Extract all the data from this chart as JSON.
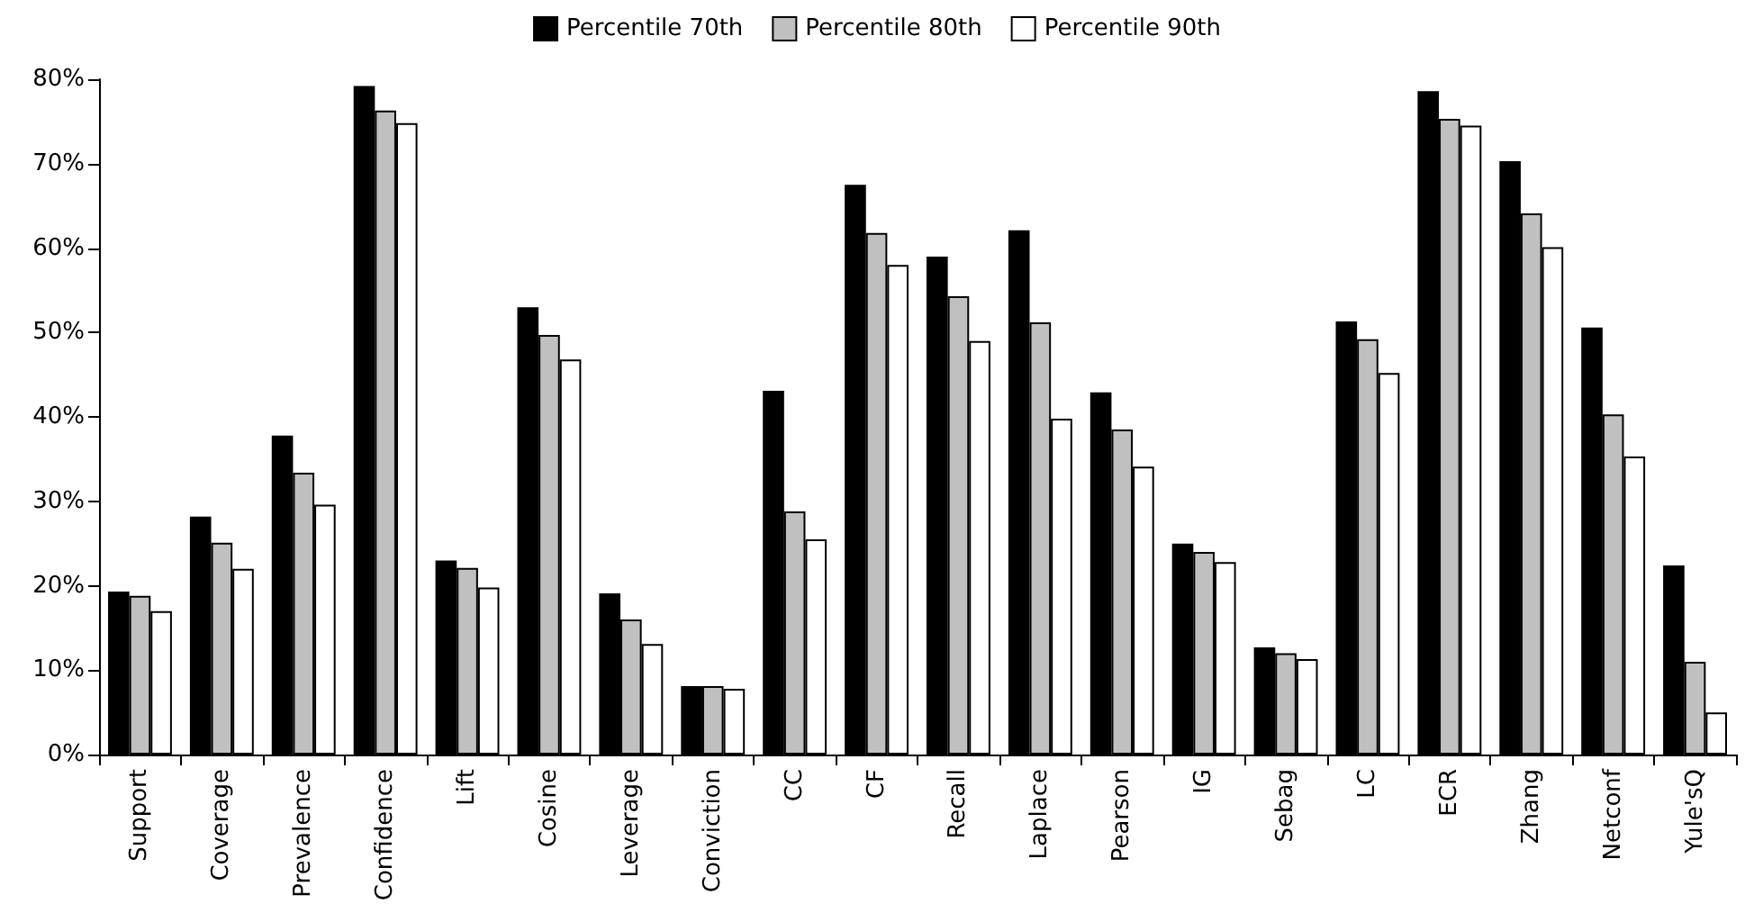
{
  "chart_data": {
    "type": "bar",
    "categories": [
      "Support",
      "Coverage",
      "Prevalence",
      "Confidence",
      "Lift",
      "Cosine",
      "Leverage",
      "Conviction",
      "CC",
      "CF",
      "Recall",
      "Laplace",
      "Pearson",
      "IG",
      "Sebag",
      "LC",
      "ECR",
      "Zhang",
      "Netconf",
      "Yule'sQ"
    ],
    "series": [
      {
        "name": "Percentile 70th",
        "color": "#000000",
        "values": [
          19.3,
          28.2,
          37.8,
          79.2,
          23,
          53,
          19.1,
          8.1,
          43.1,
          67.5,
          59,
          62.1,
          42.9,
          25,
          12.7,
          51.3,
          78.6,
          70.3,
          50.6,
          22.4
        ]
      },
      {
        "name": "Percentile 80th",
        "color": "#c0c0c0",
        "values": [
          18.8,
          25.1,
          33.4,
          76.3,
          22.1,
          49.7,
          16,
          8.1,
          28.8,
          61.8,
          54.3,
          51.2,
          38.5,
          24,
          12,
          49.2,
          75.3,
          64.1,
          40.3,
          11
        ]
      },
      {
        "name": "Percentile 90th",
        "color": "#ffffff",
        "values": [
          17,
          22,
          29.6,
          74.8,
          19.8,
          46.8,
          13.1,
          7.8,
          25.5,
          58,
          49,
          39.8,
          34.1,
          22.8,
          11.3,
          45.2,
          74.5,
          60.1,
          35.3,
          5
        ]
      }
    ],
    "ylim": [
      0,
      80
    ],
    "yticks": [
      {
        "value": 0,
        "label": "0%"
      },
      {
        "value": 10,
        "label": "10%"
      },
      {
        "value": 20,
        "label": "20%"
      },
      {
        "value": 30,
        "label": "30%"
      },
      {
        "value": 40,
        "label": "40%"
      },
      {
        "value": 50,
        "label": "50%"
      },
      {
        "value": 60,
        "label": "60%"
      },
      {
        "value": 70,
        "label": "70%"
      },
      {
        "value": 80,
        "label": "80%"
      }
    ],
    "grid": false,
    "legend": "top"
  }
}
